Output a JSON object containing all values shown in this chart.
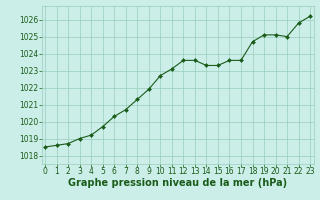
{
  "x": [
    0,
    1,
    2,
    3,
    4,
    5,
    6,
    7,
    8,
    9,
    10,
    11,
    12,
    13,
    14,
    15,
    16,
    17,
    18,
    19,
    20,
    21,
    22,
    23
  ],
  "y": [
    1018.5,
    1018.6,
    1018.7,
    1019.0,
    1019.2,
    1019.7,
    1020.3,
    1020.7,
    1021.3,
    1021.9,
    1022.7,
    1023.1,
    1023.6,
    1023.6,
    1023.3,
    1023.3,
    1023.6,
    1023.6,
    1024.7,
    1025.1,
    1025.1,
    1025.0,
    1025.8,
    1026.2
  ],
  "ylim": [
    1017.5,
    1026.8
  ],
  "yticks": [
    1018,
    1019,
    1020,
    1021,
    1022,
    1023,
    1024,
    1025,
    1026
  ],
  "xticks": [
    0,
    1,
    2,
    3,
    4,
    5,
    6,
    7,
    8,
    9,
    10,
    11,
    12,
    13,
    14,
    15,
    16,
    17,
    18,
    19,
    20,
    21,
    22,
    23
  ],
  "xlabel": "Graphe pression niveau de la mer (hPa)",
  "line_color": "#1a5c1a",
  "marker_color": "#1a5c1a",
  "bg_color": "#cceee8",
  "grid_color": "#99ccbb",
  "tick_label_color": "#1a5c1a",
  "xlabel_color": "#1a5c1a",
  "xlabel_fontsize": 7.0,
  "tick_fontsize": 5.5,
  "marker": "D",
  "marker_size": 2.0,
  "line_width": 0.8
}
